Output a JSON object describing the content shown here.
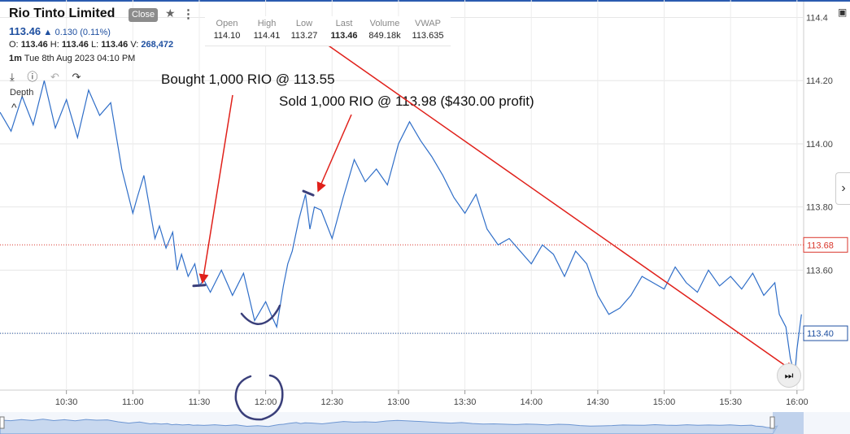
{
  "header": {
    "title": "Rio Tinto Limited",
    "close_label": "Close",
    "price": "113.46",
    "change": "0.130 (0.11%)",
    "o_label": "O:",
    "o": "113.46",
    "h_label": "H:",
    "h": "113.46",
    "l_label": "L:",
    "l": "113.46",
    "v_label": "V:",
    "v": "268,472",
    "interval": "1m",
    "datetime": "Tue 8th Aug 2023 04:10 PM",
    "depth_label": "Depth"
  },
  "ohlc_table": {
    "headers": [
      "Open",
      "High",
      "Low",
      "Last",
      "Volume",
      "VWAP"
    ],
    "values": [
      "114.10",
      "114.41",
      "113.27",
      "113.46",
      "849.18k",
      "113.635"
    ]
  },
  "chart_data": {
    "type": "line",
    "title": "",
    "xlabel": "",
    "ylabel": "",
    "x_ticks": [
      "10:30",
      "11:00",
      "11:30",
      "12:00",
      "12:30",
      "13:00",
      "13:30",
      "14:00",
      "14:30",
      "15:00",
      "15:30",
      "16:00"
    ],
    "y_ticks": [
      "113.40",
      "113.60",
      "113.80",
      "114.00",
      "114.20",
      "114.4"
    ],
    "ylim": [
      113.22,
      114.44
    ],
    "xlim": [
      "10:00",
      "16:03"
    ],
    "series": [
      {
        "x": [
          "10:00",
          "10:05",
          "10:10",
          "10:15",
          "10:20",
          "10:25",
          "10:30",
          "10:35",
          "10:40",
          "10:45",
          "10:50",
          "10:55",
          "11:00",
          "11:02",
          "11:05",
          "11:08",
          "11:10",
          "11:12",
          "11:15",
          "11:18",
          "11:20",
          "11:22",
          "11:25",
          "11:28",
          "11:30",
          "11:32",
          "11:35",
          "11:40",
          "11:45",
          "11:50",
          "11:55",
          "12:00",
          "12:03",
          "12:05",
          "12:08",
          "12:10",
          "12:12",
          "12:15",
          "12:18",
          "12:20",
          "12:22",
          "12:25",
          "12:30",
          "12:35",
          "12:40",
          "12:45",
          "12:50",
          "12:55",
          "13:00",
          "13:05",
          "13:10",
          "13:15",
          "13:20",
          "13:25",
          "13:30",
          "13:35",
          "13:40",
          "13:45",
          "13:50",
          "14:00",
          "14:05",
          "14:10",
          "14:15",
          "14:20",
          "14:25",
          "14:30",
          "14:35",
          "14:40",
          "14:45",
          "14:50",
          "14:55",
          "15:00",
          "15:05",
          "15:10",
          "15:15",
          "15:20",
          "15:25",
          "15:30",
          "15:35",
          "15:40",
          "15:45",
          "15:50",
          "15:52",
          "15:55",
          "15:57",
          "15:59",
          "16:00",
          "16:02"
        ],
        "values": [
          114.1,
          114.04,
          114.15,
          114.06,
          114.2,
          114.05,
          114.14,
          114.02,
          114.17,
          114.09,
          114.13,
          113.92,
          113.78,
          113.83,
          113.9,
          113.78,
          113.7,
          113.74,
          113.67,
          113.72,
          113.6,
          113.65,
          113.58,
          113.62,
          113.55,
          113.57,
          113.53,
          113.6,
          113.52,
          113.59,
          113.44,
          113.5,
          113.45,
          113.42,
          113.55,
          113.62,
          113.66,
          113.76,
          113.84,
          113.73,
          113.8,
          113.79,
          113.7,
          113.83,
          113.95,
          113.88,
          113.92,
          113.87,
          114.0,
          114.07,
          114.01,
          113.96,
          113.9,
          113.83,
          113.78,
          113.84,
          113.73,
          113.68,
          113.7,
          113.62,
          113.68,
          113.65,
          113.58,
          113.66,
          113.62,
          113.52,
          113.46,
          113.48,
          113.52,
          113.58,
          113.56,
          113.54,
          113.61,
          113.56,
          113.53,
          113.6,
          113.55,
          113.58,
          113.54,
          113.59,
          113.52,
          113.56,
          113.46,
          113.42,
          113.32,
          113.27,
          113.35,
          113.46
        ]
      }
    ],
    "reference_lines": [
      {
        "value": 113.68,
        "label": "113.68",
        "color": "#d9362b"
      },
      {
        "value": 113.4,
        "label": "113.40",
        "color": "#1e4fa0"
      }
    ],
    "annotations": [
      {
        "text": "Bought 1,000 RIO @ 113.55",
        "time": "11:30",
        "value": 113.55
      },
      {
        "text": "Sold 1,000 RIO @ 113.98 ($430.00 profit)",
        "time": "12:20",
        "value": 113.84
      }
    ],
    "line_color": "#2f6ec8"
  }
}
